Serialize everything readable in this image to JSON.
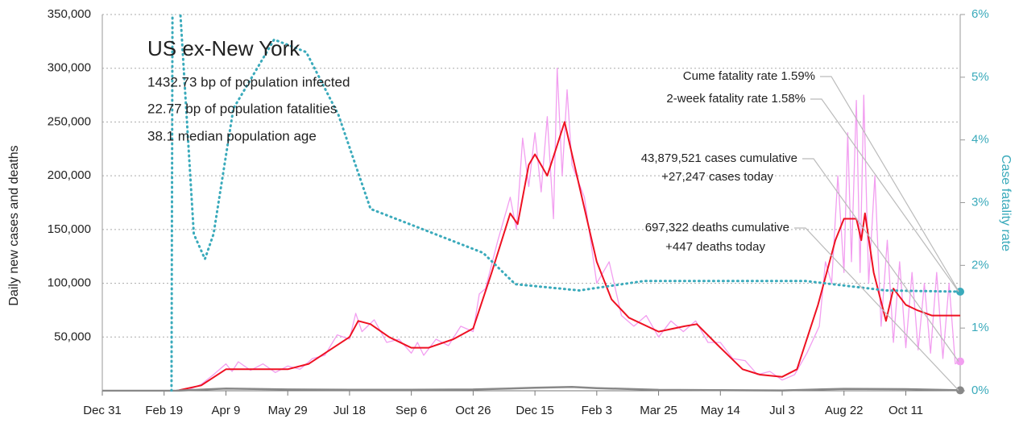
{
  "chart_data": {
    "type": "line",
    "title": "US ex-New York",
    "subtitles": [
      "1432.73 bp of population infected",
      "22.77 bp of population fatalities",
      "38.1 median population age"
    ],
    "ylabel": "Daily new cases and deaths",
    "y2label": "Case fatality rate",
    "xlim": [
      0,
      694
    ],
    "xticks": [
      {
        "value": 0,
        "label": "Dec 31"
      },
      {
        "value": 50,
        "label": "Feb 19"
      },
      {
        "value": 100,
        "label": "Apr 9"
      },
      {
        "value": 150,
        "label": "May 29"
      },
      {
        "value": 200,
        "label": "Jul 18"
      },
      {
        "value": 250,
        "label": "Sep 6"
      },
      {
        "value": 300,
        "label": "Oct 26"
      },
      {
        "value": 350,
        "label": "Dec 15"
      },
      {
        "value": 400,
        "label": "Feb 3"
      },
      {
        "value": 450,
        "label": "Mar 25"
      },
      {
        "value": 500,
        "label": "May 14"
      },
      {
        "value": 550,
        "label": "Jul 3"
      },
      {
        "value": 600,
        "label": "Aug 22"
      },
      {
        "value": 650,
        "label": "Oct 11"
      }
    ],
    "ylim": [
      0,
      350000
    ],
    "yticks": [
      {
        "value": 50000,
        "label": "50,000"
      },
      {
        "value": 100000,
        "label": "100,000"
      },
      {
        "value": 150000,
        "label": "150,000"
      },
      {
        "value": 200000,
        "label": "200,000"
      },
      {
        "value": 250000,
        "label": "250,000"
      },
      {
        "value": 300000,
        "label": "300,000"
      },
      {
        "value": 350000,
        "label": "350,000"
      }
    ],
    "y2lim": [
      0,
      6
    ],
    "y2ticks": [
      {
        "value": 0,
        "label": "0%"
      },
      {
        "value": 1,
        "label": "1%"
      },
      {
        "value": 2,
        "label": "2%"
      },
      {
        "value": 3,
        "label": "3%"
      },
      {
        "value": 4,
        "label": "4%"
      },
      {
        "value": 5,
        "label": "5%"
      },
      {
        "value": 6,
        "label": "6%"
      }
    ],
    "grid": true,
    "series": [
      {
        "color": "#f29ef0",
        "x": [
          0,
          55,
          70,
          80,
          90,
          100,
          105,
          110,
          120,
          130,
          140,
          150,
          160,
          170,
          180,
          190,
          200,
          205,
          210,
          220,
          230,
          240,
          250,
          255,
          260,
          270,
          280,
          290,
          300,
          305,
          310,
          320,
          330,
          335,
          340,
          345,
          350,
          355,
          360,
          365,
          368,
          372,
          376,
          380,
          390,
          400,
          410,
          420,
          430,
          440,
          450,
          460,
          470,
          480,
          490,
          500,
          510,
          520,
          530,
          540,
          550,
          560,
          570,
          580,
          585,
          590,
          595,
          600,
          603,
          606,
          610,
          613,
          616,
          620,
          625,
          630,
          635,
          640,
          645,
          650,
          655,
          660,
          665,
          670,
          675,
          680,
          685,
          690,
          694
        ],
        "values": [
          0,
          0,
          1000,
          6000,
          15000,
          25000,
          18000,
          27000,
          19000,
          25000,
          17000,
          23000,
          20000,
          30000,
          33000,
          52000,
          48000,
          72000,
          55000,
          66000,
          45000,
          48000,
          35000,
          45000,
          33000,
          48000,
          42000,
          60000,
          55000,
          90000,
          95000,
          140000,
          180000,
          150000,
          235000,
          190000,
          240000,
          185000,
          255000,
          160000,
          300000,
          200000,
          280000,
          210000,
          180000,
          100000,
          120000,
          70000,
          60000,
          70000,
          50000,
          65000,
          55000,
          65000,
          45000,
          45000,
          30000,
          28000,
          15000,
          18000,
          10000,
          15000,
          35000,
          60000,
          120000,
          100000,
          200000,
          110000,
          240000,
          120000,
          270000,
          110000,
          275000,
          100000,
          200000,
          60000,
          140000,
          45000,
          120000,
          40000,
          110000,
          38000,
          100000,
          35000,
          110000,
          30000,
          100000,
          25000,
          27247
        ]
      },
      {
        "color": "#ee1122",
        "x": [
          0,
          60,
          80,
          100,
          150,
          167,
          200,
          207,
          217,
          232,
          250,
          264,
          284,
          300,
          315,
          330,
          336,
          345,
          350,
          360,
          367,
          374,
          386,
          400,
          412,
          426,
          450,
          471,
          481,
          500,
          518,
          532,
          550,
          562,
          579,
          593,
          600,
          610,
          614,
          617,
          624,
          634,
          640,
          650,
          659,
          671,
          694
        ],
        "values": [
          0,
          0,
          5000,
          20000,
          20000,
          25000,
          50000,
          65000,
          62000,
          50000,
          40000,
          40000,
          48000,
          58000,
          110000,
          165000,
          155000,
          210000,
          220000,
          200000,
          225000,
          250000,
          190000,
          120000,
          85000,
          68000,
          55000,
          60000,
          62000,
          40000,
          20000,
          15000,
          13000,
          20000,
          80000,
          140000,
          160000,
          160000,
          140000,
          165000,
          110000,
          65000,
          95000,
          80000,
          75000,
          70000,
          70000
        ]
      },
      {
        "color": "#888888",
        "x": [
          0,
          60,
          100,
          150,
          200,
          250,
          300,
          350,
          380,
          400,
          450,
          500,
          550,
          600,
          650,
          694
        ],
        "values": [
          0,
          100,
          2000,
          1200,
          1000,
          900,
          1200,
          2800,
          3500,
          2500,
          800,
          500,
          300,
          1800,
          1500,
          447
        ]
      },
      {
        "color": "#3aaabb",
        "axis": "y2",
        "x": [
          56,
          57,
          74,
          83,
          90,
          106,
          139,
          165,
          191,
          217,
          256,
          308,
          334,
          386,
          438,
          569,
          634,
          694
        ],
        "values": [
          0,
          8,
          2.5,
          2.1,
          2.5,
          4.5,
          5.6,
          5.4,
          4.4,
          2.9,
          2.6,
          2.2,
          1.7,
          1.6,
          1.75,
          1.75,
          1.6,
          1.58
        ]
      }
    ],
    "annotations": [
      {
        "text": "Cume fatality rate 1.59%",
        "value": 1.59,
        "axis": "y2"
      },
      {
        "text": "2-week fatality rate 1.58%",
        "value": 1.58,
        "axis": "y2"
      },
      {
        "text": "43,879,521 cases cumulative",
        "text2": "+27,247 cases today",
        "value": 27247
      },
      {
        "text": "697,322 deaths cumulative",
        "text2": "+447 deaths today",
        "value": 447
      }
    ]
  }
}
